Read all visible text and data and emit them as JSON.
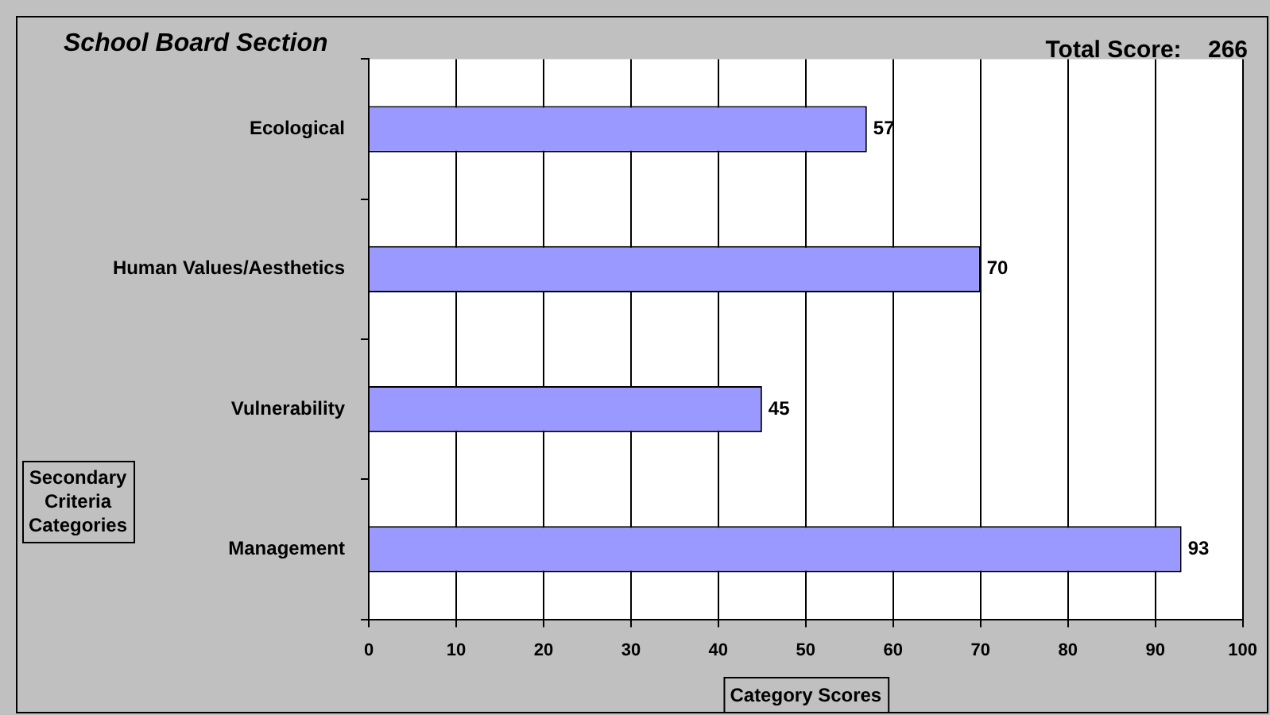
{
  "chart_data": {
    "type": "bar",
    "orientation": "horizontal",
    "title": "School Board Section",
    "xlabel": "Category Scores",
    "ylabel": "Secondary Criteria Categories",
    "categories": [
      "Ecological",
      "Human Values/Aesthetics",
      "Vulnerability",
      "Management"
    ],
    "values": [
      57,
      70,
      45,
      93
    ],
    "color": "#9999ff",
    "data_labels": true,
    "grid": "x",
    "legend": false,
    "xlim": [
      0,
      100
    ],
    "xticks": [
      0,
      10,
      20,
      30,
      40,
      50,
      60,
      70,
      80,
      90,
      100
    ],
    "annotations": [
      "Total Score:    266"
    ]
  }
}
